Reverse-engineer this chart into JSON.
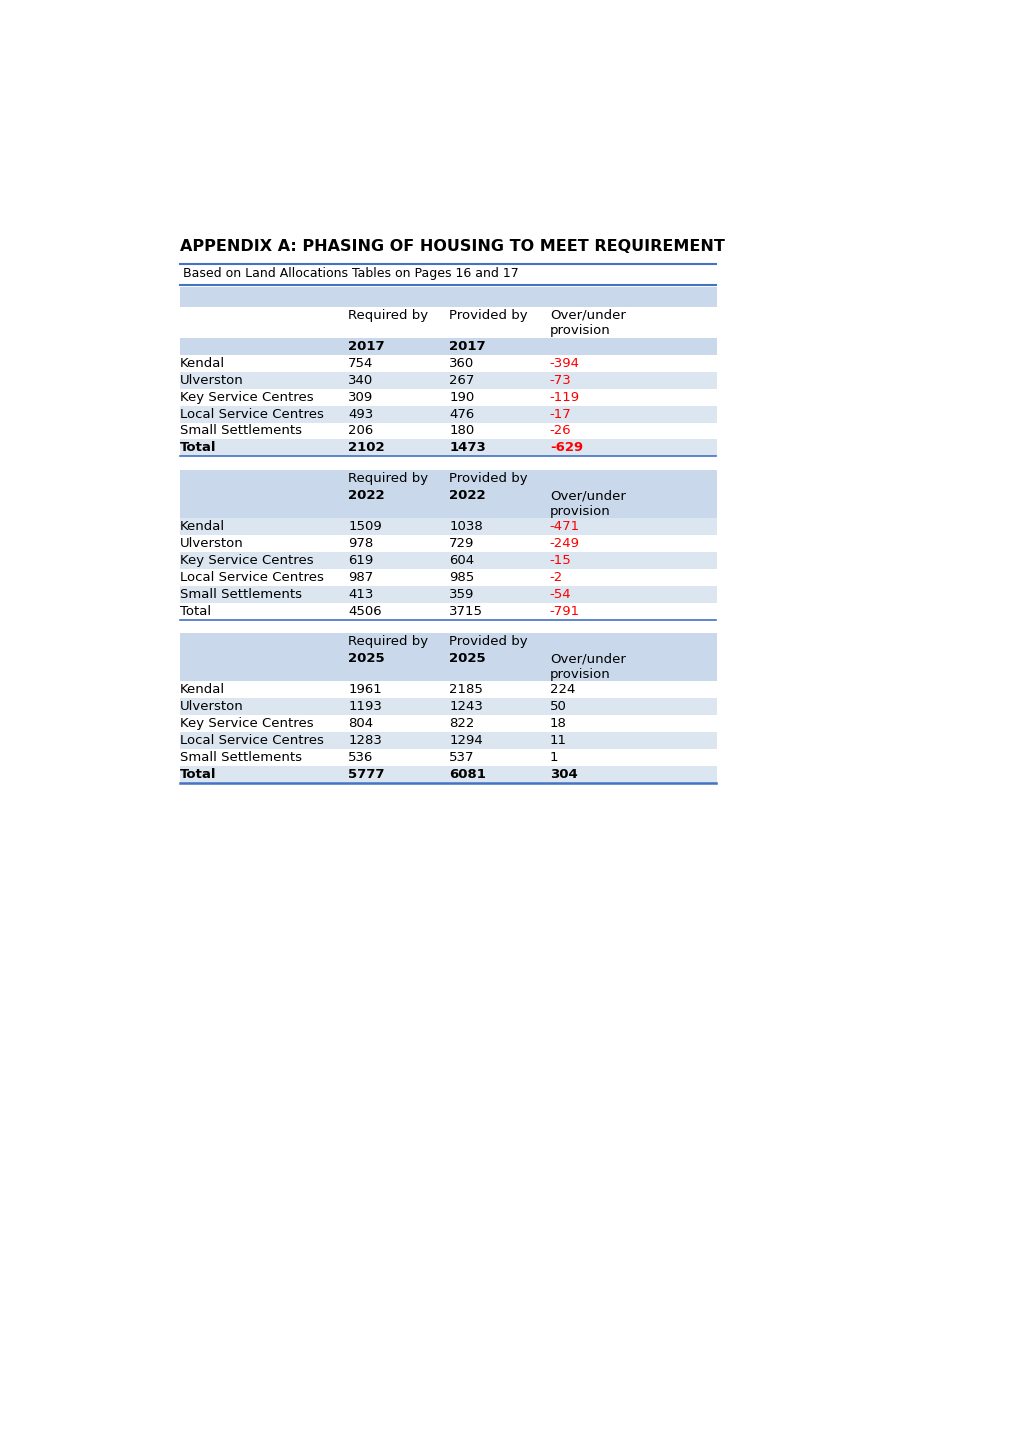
{
  "title": "APPENDIX A: PHASING OF HOUSING TO MEET REQUIREMENT",
  "subtitle": "Based on Land Allocations Tables on Pages 16 and 17",
  "bg_color": "#ffffff",
  "header_bg": "#c9d9eb",
  "row_alt_bg": "#dce6f1",
  "row_white_bg": "#ffffff",
  "border_color": "#4472c4",
  "red_color": "#ff0000",
  "black_color": "#000000",
  "tables": [
    {
      "year": "2017",
      "rows": [
        {
          "label": "Kendal",
          "req": "754",
          "prov": "360",
          "over": "-394",
          "over_red": true,
          "shaded": false,
          "bold": false
        },
        {
          "label": "Ulverston",
          "req": "340",
          "prov": "267",
          "over": "-73",
          "over_red": true,
          "shaded": true,
          "bold": false
        },
        {
          "label": "Key Service Centres",
          "req": "309",
          "prov": "190",
          "over": "-119",
          "over_red": true,
          "shaded": false,
          "bold": false
        },
        {
          "label": "Local Service Centres",
          "req": "493",
          "prov": "476",
          "over": "-17",
          "over_red": true,
          "shaded": true,
          "bold": false
        },
        {
          "label": "Small Settlements",
          "req": "206",
          "prov": "180",
          "over": "-26",
          "over_red": true,
          "shaded": false,
          "bold": false
        },
        {
          "label": "Total",
          "req": "2102",
          "prov": "1473",
          "over": "-629",
          "over_red": true,
          "shaded": true,
          "bold": true
        }
      ]
    },
    {
      "year": "2022",
      "rows": [
        {
          "label": "Kendal",
          "req": "1509",
          "prov": "1038",
          "over": "-471",
          "over_red": true,
          "shaded": true,
          "bold": false
        },
        {
          "label": "Ulverston",
          "req": "978",
          "prov": "729",
          "over": "-249",
          "over_red": true,
          "shaded": false,
          "bold": false
        },
        {
          "label": "Key Service Centres",
          "req": "619",
          "prov": "604",
          "over": "-15",
          "over_red": true,
          "shaded": true,
          "bold": false
        },
        {
          "label": "Local Service Centres",
          "req": "987",
          "prov": "985",
          "over": "-2",
          "over_red": true,
          "shaded": false,
          "bold": false
        },
        {
          "label": "Small Settlements",
          "req": "413",
          "prov": "359",
          "over": "-54",
          "over_red": true,
          "shaded": true,
          "bold": false
        },
        {
          "label": "Total",
          "req": "4506",
          "prov": "3715",
          "over": "-791",
          "over_red": true,
          "shaded": false,
          "bold": false
        }
      ]
    },
    {
      "year": "2025",
      "rows": [
        {
          "label": "Kendal",
          "req": "1961",
          "prov": "2185",
          "over": "224",
          "over_red": false,
          "shaded": false,
          "bold": false
        },
        {
          "label": "Ulverston",
          "req": "1193",
          "prov": "1243",
          "over": "50",
          "over_red": false,
          "shaded": true,
          "bold": false
        },
        {
          "label": "Key Service Centres",
          "req": "804",
          "prov": "822",
          "over": "18",
          "over_red": false,
          "shaded": false,
          "bold": false
        },
        {
          "label": "Local Service Centres",
          "req": "1283",
          "prov": "1294",
          "over": "11",
          "over_red": false,
          "shaded": true,
          "bold": false
        },
        {
          "label": "Small Settlements",
          "req": "536",
          "prov": "537",
          "over": "1",
          "over_red": false,
          "shaded": false,
          "bold": false
        },
        {
          "label": "Total",
          "req": "5777",
          "prov": "6081",
          "over": "304",
          "over_red": false,
          "shaded": true,
          "bold": true
        }
      ]
    }
  ],
  "font_family": "Arial"
}
